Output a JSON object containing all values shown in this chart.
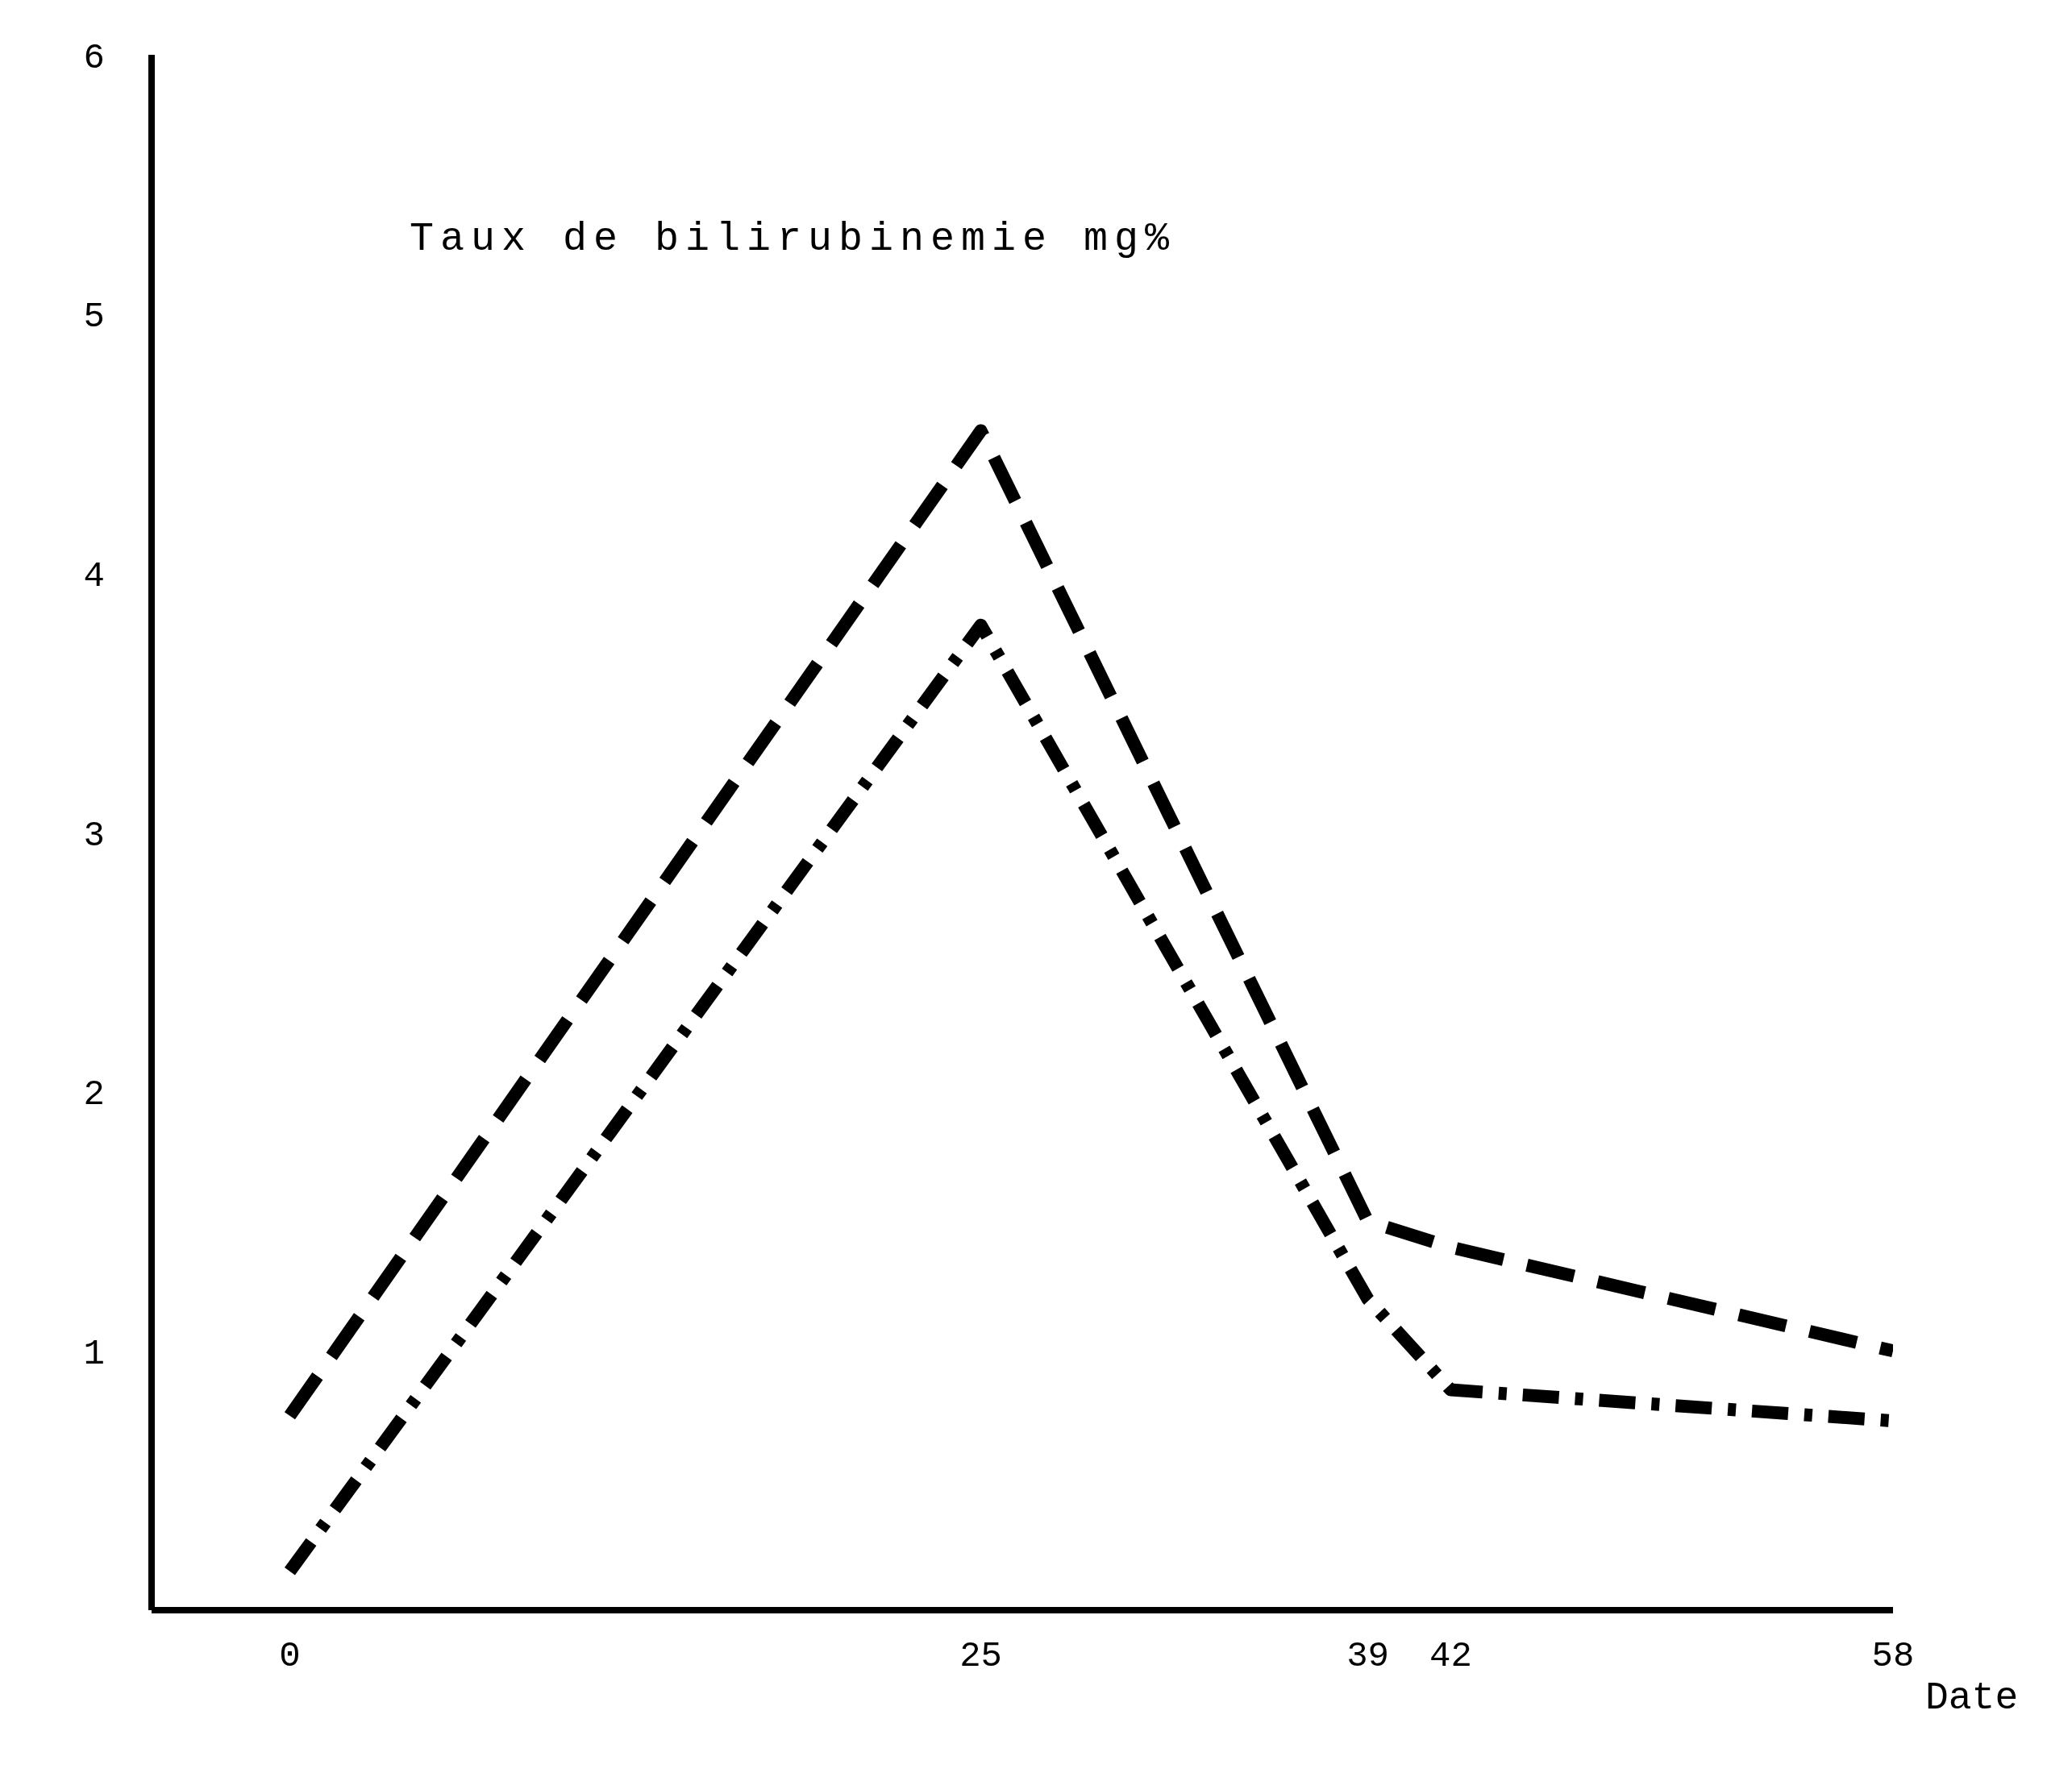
{
  "chart_data": {
    "type": "line",
    "title": "Taux de bilirubinemie mg%",
    "xlabel": "Date",
    "x": [
      0,
      25,
      39,
      42,
      58
    ],
    "series": [
      {
        "color": "#000000",
        "values": [
          0.75,
          4.55,
          1.5,
          1.4,
          1.0
        ],
        "line_style": "dashed"
      },
      {
        "color": "#000000",
        "values": [
          0.15,
          3.8,
          1.2,
          0.85,
          0.73
        ],
        "line_style": "dashed"
      }
    ],
    "xlim": [
      -5,
      58
    ],
    "xticks": [
      0,
      25,
      39,
      42,
      58
    ],
    "ylim": [
      0,
      6
    ],
    "yticks": [
      1,
      2,
      3,
      4,
      5,
      6
    ],
    "grid": false,
    "legend": false,
    "marker": "none"
  }
}
